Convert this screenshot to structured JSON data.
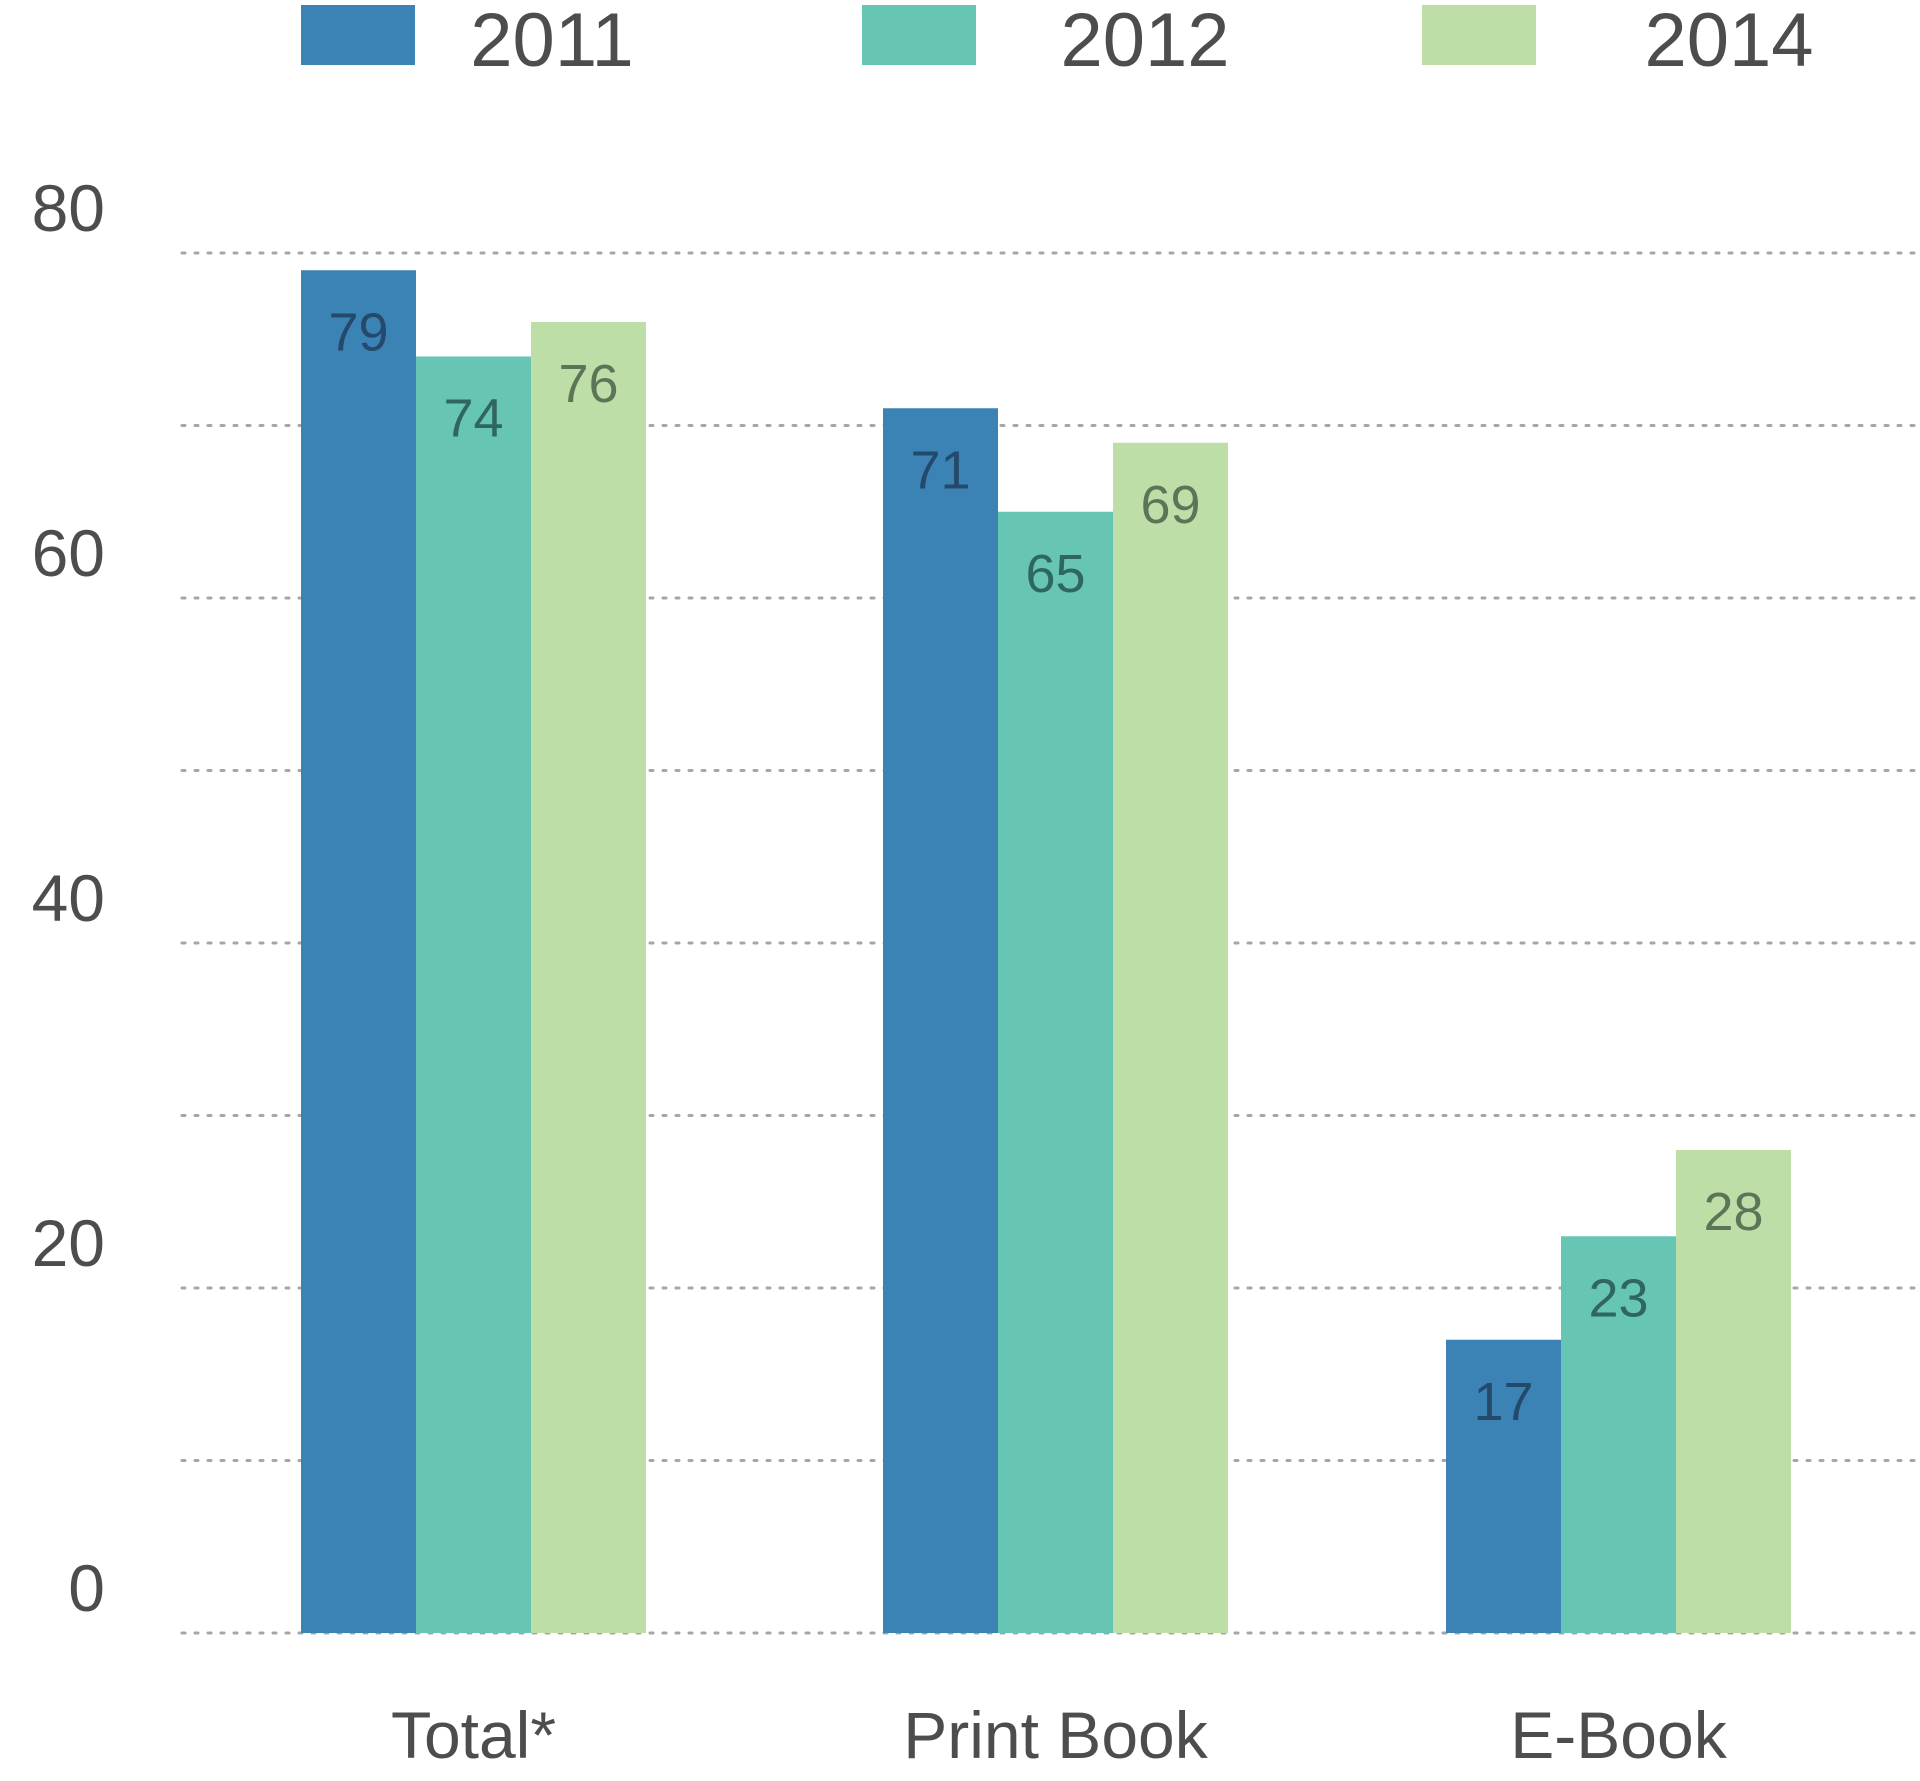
{
  "chart_data": {
    "type": "bar",
    "title": "",
    "xlabel": "",
    "ylabel": "",
    "categories": [
      "Total*",
      "Print Book",
      "E-Book"
    ],
    "series": [
      {
        "name": "2011",
        "color": "#3c83b5",
        "label_color": "#24496b",
        "values": [
          79,
          71,
          17
        ]
      },
      {
        "name": "2012",
        "color": "#66c5b3",
        "label_color": "#2f6760",
        "values": [
          74,
          65,
          23
        ]
      },
      {
        "name": "2014",
        "color": "#bddfa7",
        "label_color": "#5c7558",
        "values": [
          76,
          69,
          28
        ]
      }
    ],
    "ylim": [
      0,
      80
    ],
    "yticks": [
      0,
      20,
      40,
      60,
      80
    ],
    "grid": true,
    "grid_step": 10,
    "legend_position": "top"
  }
}
